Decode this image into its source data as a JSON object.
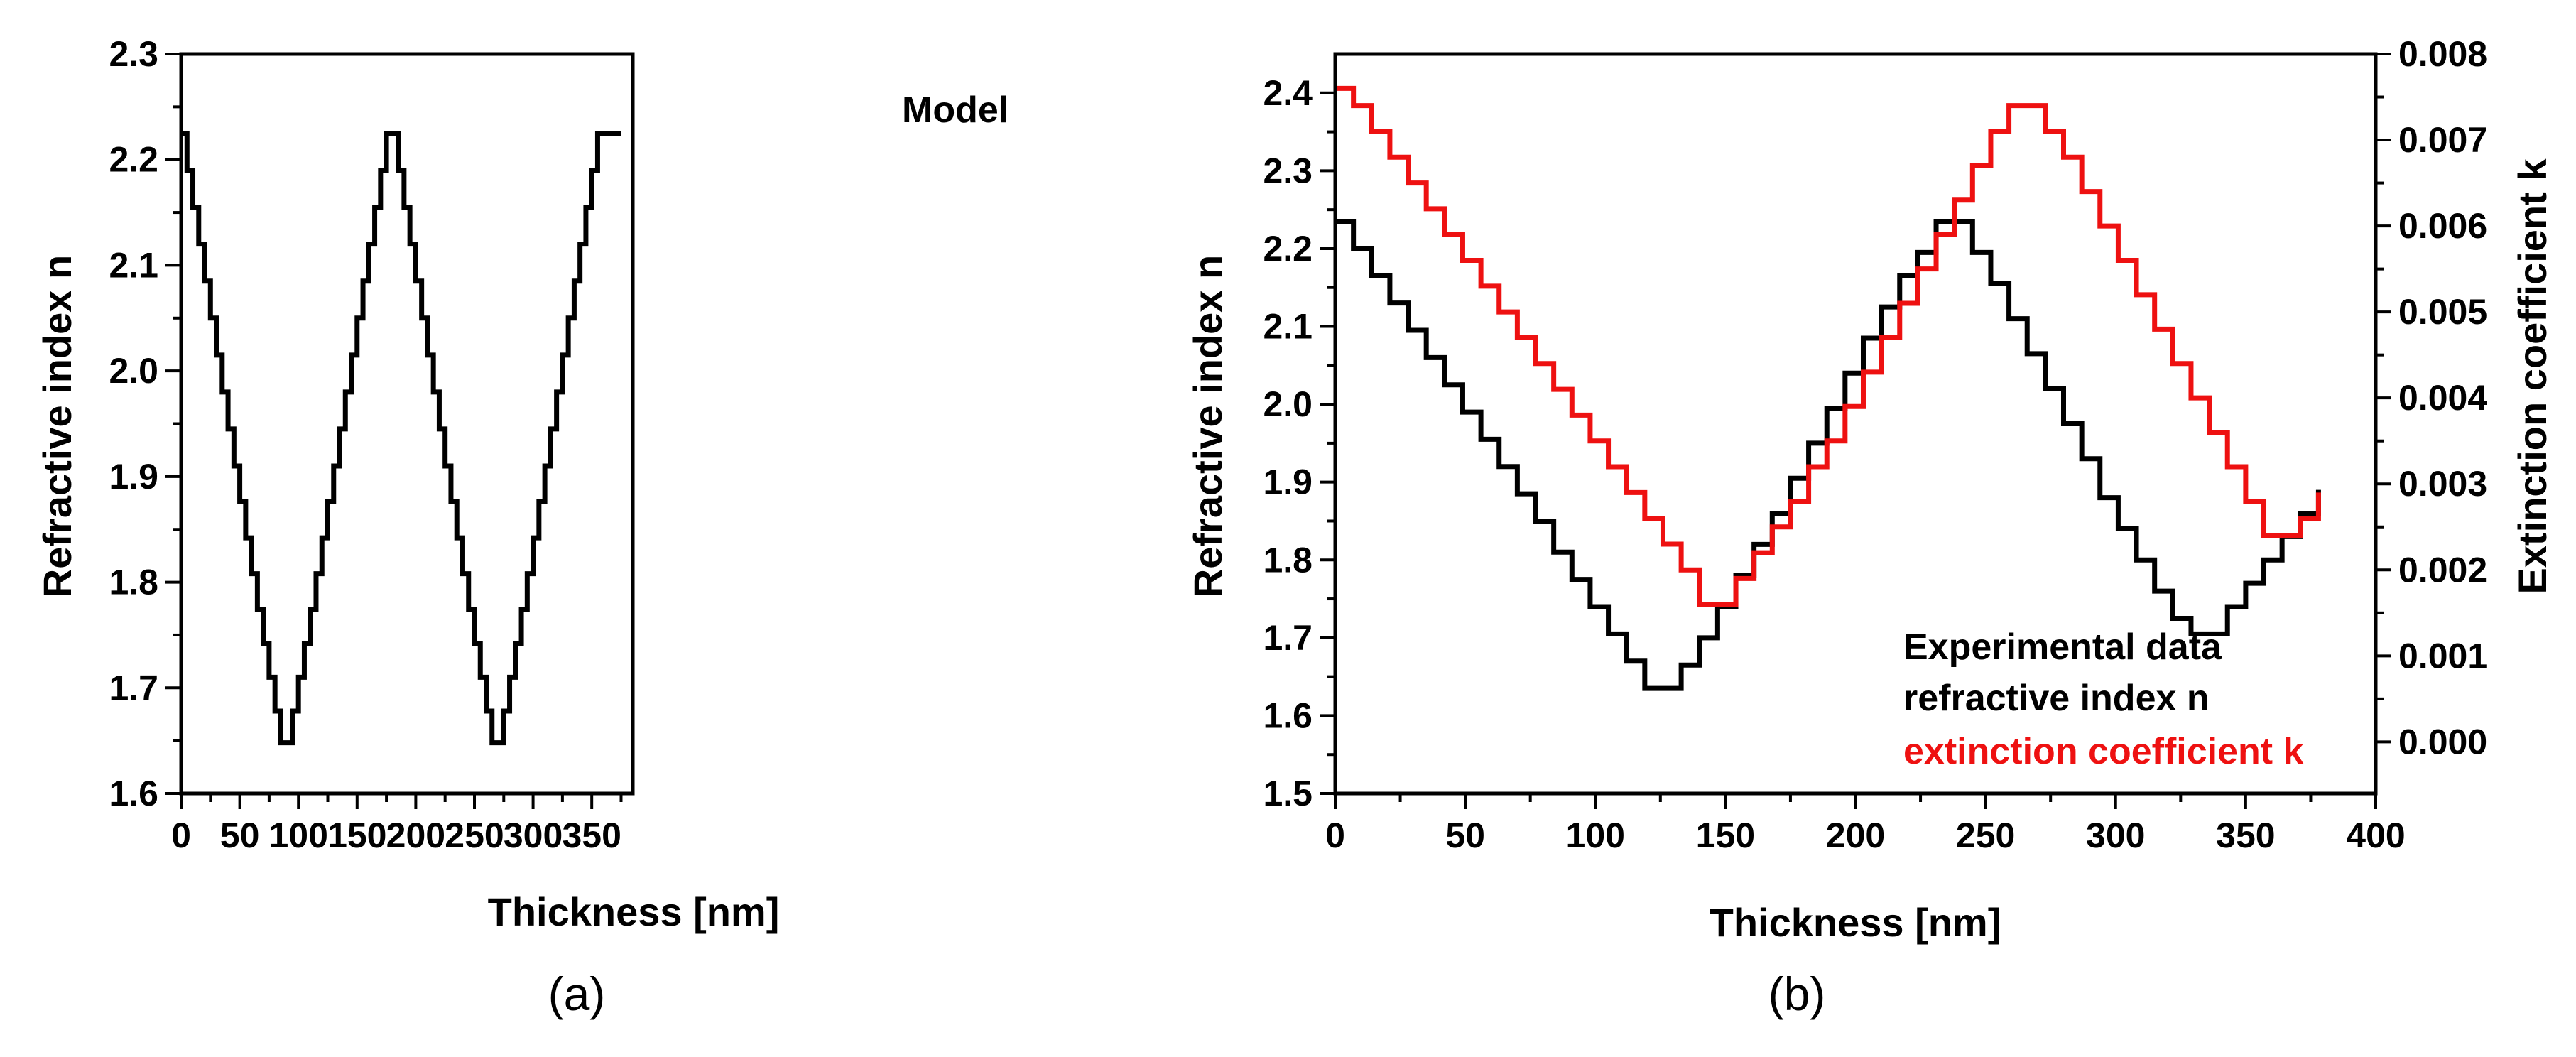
{
  "chart_data": [
    {
      "type": "line",
      "panel_label": "(a)",
      "title": "",
      "annotation": "Model",
      "xlabel": "Thickness [nm]",
      "ylabel": "Refractive index n",
      "xlim": [
        0,
        385
      ],
      "ylim": [
        1.6,
        2.3
      ],
      "xticks": [
        0,
        50,
        100,
        150,
        200,
        250,
        300,
        350
      ],
      "yticks": [
        1.6,
        1.7,
        1.8,
        1.9,
        2.0,
        2.1,
        2.2,
        2.3
      ],
      "xticklabels": [
        "0",
        "50",
        "100",
        "150",
        "200",
        "250",
        "300",
        "350"
      ],
      "yticklabels": [
        "1.6",
        "1.7",
        "1.8",
        "1.9",
        "2.0",
        "2.1",
        "2.2",
        "2.3"
      ],
      "series": [
        {
          "name": "Model",
          "color": "#000000",
          "step": true,
          "x": [
            0,
            5,
            10,
            15,
            20,
            25,
            30,
            35,
            40,
            45,
            50,
            55,
            60,
            65,
            70,
            75,
            80,
            85,
            90,
            95,
            100,
            105,
            110,
            115,
            120,
            125,
            130,
            135,
            140,
            145,
            150,
            155,
            160,
            165,
            170,
            175,
            180,
            185,
            190,
            195,
            200,
            205,
            210,
            215,
            220,
            225,
            230,
            235,
            240,
            245,
            250,
            255,
            260,
            265,
            270,
            275,
            280,
            285,
            290,
            295,
            300,
            305,
            310,
            315,
            320,
            325,
            330,
            335,
            340,
            345,
            350,
            355,
            360,
            365,
            370,
            375
          ],
          "y": [
            2.225,
            2.19,
            2.155,
            2.12,
            2.085,
            2.05,
            2.015,
            1.98,
            1.945,
            1.91,
            1.876,
            1.842,
            1.808,
            1.774,
            1.742,
            1.71,
            1.678,
            1.648,
            1.648,
            1.678,
            1.71,
            1.742,
            1.774,
            1.808,
            1.842,
            1.876,
            1.91,
            1.945,
            1.98,
            2.015,
            2.05,
            2.085,
            2.12,
            2.155,
            2.19,
            2.225,
            2.225,
            2.19,
            2.155,
            2.12,
            2.085,
            2.05,
            2.015,
            1.98,
            1.945,
            1.91,
            1.876,
            1.842,
            1.808,
            1.774,
            1.742,
            1.71,
            1.678,
            1.648,
            1.648,
            1.678,
            1.71,
            1.742,
            1.774,
            1.808,
            1.842,
            1.876,
            1.91,
            1.945,
            1.98,
            2.015,
            2.05,
            2.085,
            2.12,
            2.155,
            2.19,
            2.225,
            2.225,
            2.225,
            2.225,
            2.225
          ]
        }
      ]
    },
    {
      "type": "line",
      "panel_label": "(b)",
      "title": "",
      "xlabel": "Thickness [nm]",
      "ylabel": "Refractive index n",
      "y2label": "Extinction coefficient k",
      "xlim": [
        0,
        400
      ],
      "ylim": [
        1.5,
        2.45
      ],
      "y2lim": [
        -0.0006,
        0.008
      ],
      "xticks": [
        0,
        50,
        100,
        150,
        200,
        250,
        300,
        350,
        400
      ],
      "yticks": [
        1.5,
        1.6,
        1.7,
        1.8,
        1.9,
        2.0,
        2.1,
        2.2,
        2.3,
        2.4
      ],
      "y2ticks": [
        0.0,
        0.001,
        0.002,
        0.003,
        0.004,
        0.005,
        0.006,
        0.007,
        0.008
      ],
      "xticklabels": [
        "0",
        "50",
        "100",
        "150",
        "200",
        "250",
        "300",
        "350",
        "400"
      ],
      "yticklabels": [
        "1.5",
        "1.6",
        "1.7",
        "1.8",
        "1.9",
        "2.0",
        "2.1",
        "2.2",
        "2.3",
        "2.4"
      ],
      "y2ticklabels": [
        "0.000",
        "0.001",
        "0.002",
        "0.003",
        "0.004",
        "0.005",
        "0.006",
        "0.007",
        "0.008"
      ],
      "legend": {
        "placement": "bottom-right",
        "heading": "Experimental data",
        "entries": [
          "refractive index n",
          "extinction coefficient k"
        ]
      },
      "series": [
        {
          "name": "refractive index n",
          "axis": "left",
          "color": "#000000",
          "step": true,
          "x": [
            0,
            7,
            14,
            21,
            28,
            35,
            42,
            49,
            56,
            63,
            70,
            77,
            84,
            91,
            98,
            105,
            112,
            119,
            126,
            133,
            140,
            147,
            154,
            161,
            168,
            175,
            182,
            189,
            196,
            203,
            210,
            217,
            224,
            231,
            238,
            245,
            252,
            259,
            266,
            273,
            280,
            287,
            294,
            301,
            308,
            315,
            322,
            329,
            336,
            343,
            350,
            357,
            364,
            371,
            378
          ],
          "y": [
            2.235,
            2.2,
            2.165,
            2.13,
            2.095,
            2.06,
            2.025,
            1.99,
            1.955,
            1.92,
            1.885,
            1.85,
            1.81,
            1.775,
            1.74,
            1.705,
            1.67,
            1.635,
            1.635,
            1.665,
            1.7,
            1.74,
            1.78,
            1.82,
            1.86,
            1.905,
            1.95,
            1.995,
            2.04,
            2.085,
            2.125,
            2.165,
            2.195,
            2.235,
            2.235,
            2.195,
            2.155,
            2.11,
            2.065,
            2.02,
            1.975,
            1.93,
            1.88,
            1.84,
            1.8,
            1.76,
            1.725,
            1.705,
            1.705,
            1.74,
            1.77,
            1.8,
            1.83,
            1.86,
            1.89
          ]
        },
        {
          "name": "extinction coefficient k",
          "axis": "right",
          "color": "#ee1111",
          "step": true,
          "x": [
            0,
            7,
            14,
            21,
            28,
            35,
            42,
            49,
            56,
            63,
            70,
            77,
            84,
            91,
            98,
            105,
            112,
            119,
            126,
            133,
            140,
            147,
            154,
            161,
            168,
            175,
            182,
            189,
            196,
            203,
            210,
            217,
            224,
            231,
            238,
            245,
            252,
            259,
            266,
            273,
            280,
            287,
            294,
            301,
            308,
            315,
            322,
            329,
            336,
            343,
            350,
            357,
            364,
            371,
            378
          ],
          "y": [
            0.0076,
            0.0074,
            0.0071,
            0.0068,
            0.0065,
            0.0062,
            0.0059,
            0.0056,
            0.0053,
            0.005,
            0.0047,
            0.0044,
            0.0041,
            0.0038,
            0.0035,
            0.0032,
            0.0029,
            0.0026,
            0.0023,
            0.002,
            0.0016,
            0.0016,
            0.0019,
            0.0022,
            0.0025,
            0.0028,
            0.0032,
            0.0035,
            0.0039,
            0.0043,
            0.0047,
            0.0051,
            0.0055,
            0.0059,
            0.0063,
            0.0067,
            0.0071,
            0.0074,
            0.0074,
            0.0071,
            0.0068,
            0.0064,
            0.006,
            0.0056,
            0.0052,
            0.0048,
            0.0044,
            0.004,
            0.0036,
            0.0032,
            0.0028,
            0.0024,
            0.0024,
            0.0026,
            0.0029
          ]
        }
      ]
    }
  ]
}
